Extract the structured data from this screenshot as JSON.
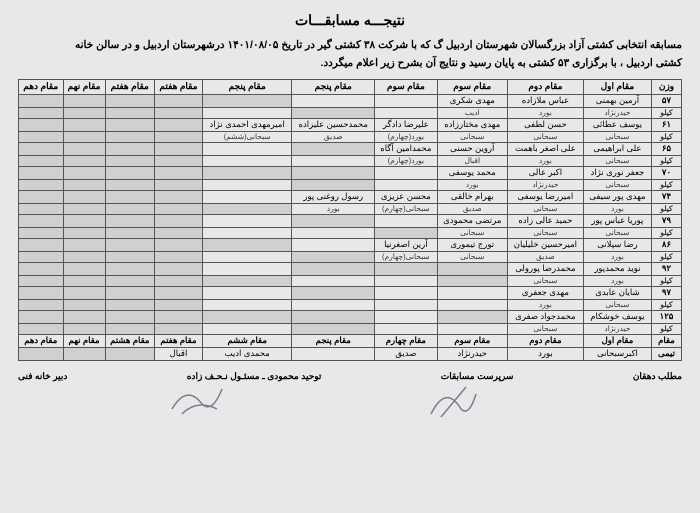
{
  "title": "نتیجـــه مسابقـــات",
  "subtitle_l1": "مسابقه انتخابی کشتی آزاد بزرگسالان شهرستان اردبیل گ که با شرکت ۳۸ کشتی گیر در تاریخ ۱۴۰۱/۰۸/۰۵ درشهرستان اردبیل و در سالن خانه",
  "subtitle_l2": "کشتی اردبیل ، با برگزاری ۵۳ کشتی به پایان رسید و نتایج آن بشرح زیر اعلام میگردد.",
  "headers": [
    "وزن",
    "مقام اول",
    "مقام دوم",
    "مقام سوم",
    "مقام سوم",
    "مقام پنجم",
    "مقام پنجم",
    "مقام هفتم",
    "مقام هفتم",
    "مقام نهم",
    "مقام دهم"
  ],
  "rows": [
    {
      "w": "۵۷",
      "r1": [
        "آرمین بهمنی",
        "عباس ملازاده",
        "مهدی شکری",
        "",
        "",
        "",
        "",
        "",
        "",
        ""
      ],
      "r2": [
        "کیلو",
        "حیدرنژاد",
        "بورد",
        "ادیب",
        "",
        "",
        "",
        "",
        "",
        "",
        ""
      ]
    },
    {
      "w": "۶۱",
      "r1": [
        "یوسف عطائی",
        "حسن لطفی",
        "مهدی مختارزاده",
        "علیرضا دادگر",
        "محمدحسین علیزاده",
        "امیرمهدی احمدی نژاد",
        "",
        "",
        "",
        ""
      ],
      "r2": [
        "کیلو",
        "سبحانی",
        "سبحانی",
        "سبحانی",
        "بورد(چهارم)",
        "صدیق",
        "سبحانی(ششم)",
        "",
        "",
        "",
        ""
      ]
    },
    {
      "w": "۶۵",
      "r1": [
        "علی ابراهیمی",
        "علی اصغر باهمت",
        "آروین حسنی",
        "محمدامین آگاه",
        "",
        "",
        "",
        "",
        "",
        ""
      ],
      "r2": [
        "کیلو",
        "سبحانی",
        "بورد",
        "اقبال",
        "بورد(چهارم)",
        "",
        "",
        "",
        "",
        "",
        ""
      ]
    },
    {
      "w": "۷۰",
      "r1": [
        "جعفر نوری نژاد",
        "اکبر عالی",
        "محمد یوسفی",
        "",
        "",
        "",
        "",
        "",
        "",
        ""
      ],
      "r2": [
        "کیلو",
        "سبحانی",
        "حیدرنژاد",
        "بورد",
        "",
        "",
        "",
        "",
        "",
        "",
        ""
      ]
    },
    {
      "w": "۷۴",
      "r1": [
        "مهدی پور سیفی",
        "امیررضا یوسفی",
        "بهرام خالقی",
        "محسن عزیزی",
        "رسول روغنی پور",
        "",
        "",
        "",
        "",
        ""
      ],
      "r2": [
        "کیلو",
        "بورد",
        "سبحانی",
        "صدیق",
        "سبحانی(چهارم)",
        "بورد",
        "",
        "",
        "",
        "",
        ""
      ]
    },
    {
      "w": "۷۹",
      "r1": [
        "پوریا عباس پور",
        "حمید عالی زاده",
        "مرتضی محمودی",
        "",
        "",
        "",
        "",
        "",
        "",
        ""
      ],
      "r2": [
        "کیلو",
        "سبحانی",
        "سبحانی",
        "سبحانی",
        "",
        "",
        "",
        "",
        "",
        "",
        ""
      ]
    },
    {
      "w": "۸۶",
      "r1": [
        "رضا سپلانی",
        "امیرحسین خلیلیان",
        "تورج تیموری",
        "آرین اصغرنیا",
        "",
        "",
        "",
        "",
        "",
        ""
      ],
      "r2": [
        "کیلو",
        "بورد",
        "صدیق",
        "سبحانی",
        "سبحانی(چهارم)",
        "",
        "",
        "",
        "",
        "",
        ""
      ]
    },
    {
      "w": "۹۲",
      "r1": [
        "نوید محمدپور",
        "محمدرضا پورولی",
        "",
        "",
        "",
        "",
        "",
        "",
        "",
        ""
      ],
      "r2": [
        "کیلو",
        "بورد",
        "سبحانی",
        "",
        "",
        "",
        "",
        "",
        "",
        "",
        ""
      ]
    },
    {
      "w": "۹۷",
      "r1": [
        "شایان عابدی",
        "مهدی جعفری",
        "",
        "",
        "",
        "",
        "",
        "",
        "",
        ""
      ],
      "r2": [
        "کیلو",
        "سبحانی",
        "بورد",
        "",
        "",
        "",
        "",
        "",
        "",
        "",
        ""
      ]
    },
    {
      "w": "۱۲۵",
      "r1": [
        "یوسف خوشکام",
        "محمدجواد صفری",
        "",
        "",
        "",
        "",
        "",
        "",
        "",
        ""
      ],
      "r2": [
        "کیلو",
        "حیدرنژاد",
        "سبحانی",
        "",
        "",
        "",
        "",
        "",
        "",
        "",
        ""
      ]
    },
    {
      "w": "مقام",
      "r1": [
        "اکبرسبحانی",
        "بورد",
        "حیدرنژاد",
        "صدیق",
        " ",
        "محمدی ادیب",
        "اقبال",
        "",
        "",
        ""
      ],
      "r2": [
        "تیمی",
        "",
        "",
        "",
        "",
        "",
        "",
        "",
        "",
        "",
        ""
      ],
      "summary": true
    }
  ],
  "sumheaders": [
    "مقام اول",
    "مقام دوم",
    "مقام سوم",
    "مقام چهارم",
    "مقام پنجم",
    "مقام ششم",
    "مقام هفتم",
    "مقام هشتم",
    "مقام نهم",
    "مقام دهم"
  ],
  "footer": {
    "f1": "دبیر خانه فنی",
    "f2": "توحید محمودی ـ مسئـول نـحـف زاده",
    "f3": "سرپرست مسابقات",
    "f4": "مطلب دهقان"
  },
  "colors": {
    "bg": "#e8e8e8",
    "shade": "#d0d0d0",
    "border": "#555"
  },
  "shaded": {
    "0": [
      0,
      1,
      2,
      3
    ],
    "1": [
      0,
      1
    ],
    "2": [
      0,
      1,
      2,
      3,
      4
    ],
    "3": [
      0,
      1,
      2
    ],
    "4": [
      0,
      1,
      2,
      3
    ],
    "5": [
      0,
      1,
      2,
      3
    ],
    "6": [
      0,
      1
    ],
    "7": [
      0,
      1,
      2
    ],
    "8": [
      0,
      1,
      2
    ],
    "9": [
      0,
      1,
      2
    ]
  }
}
